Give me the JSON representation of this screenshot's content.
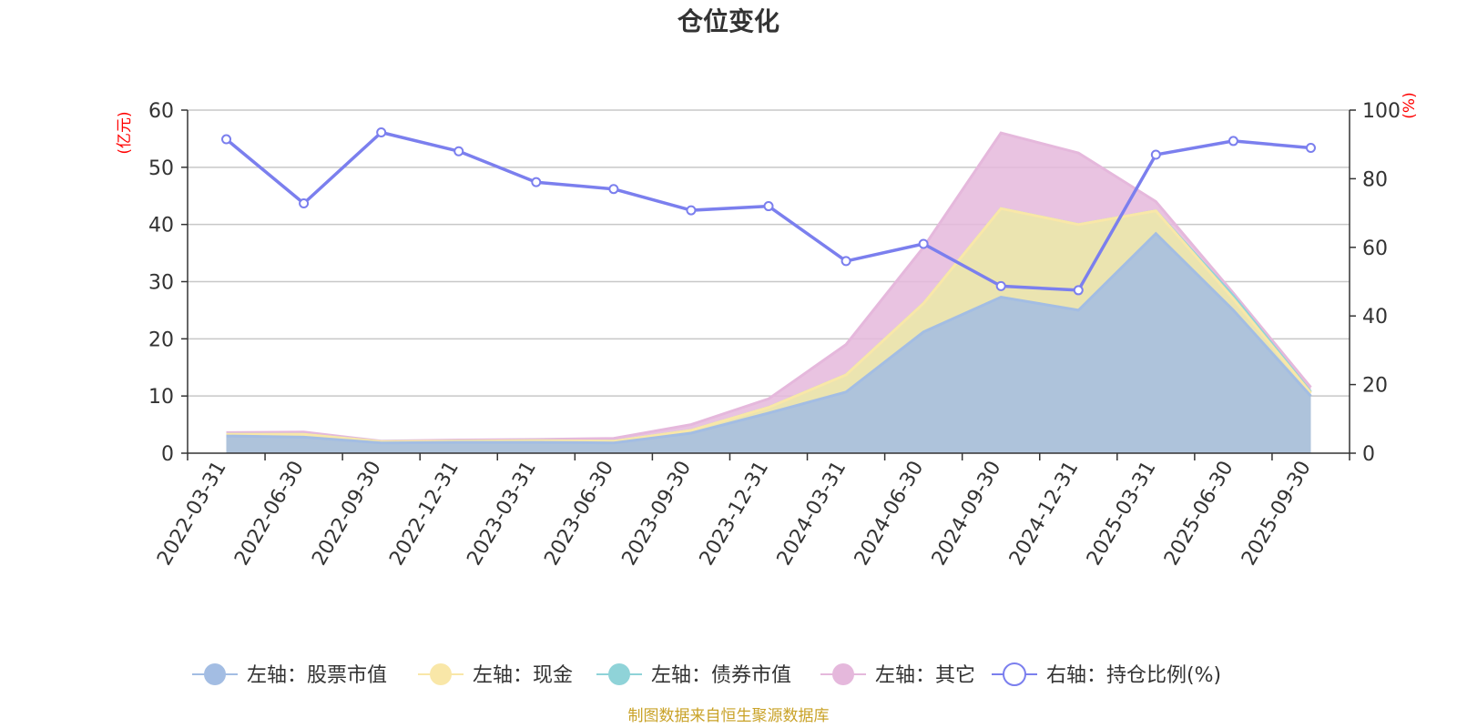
{
  "chart_data": {
    "type": "area",
    "title": "仓位变化",
    "ylabel_left": "(亿元)",
    "ylabel_right": "(%)",
    "ylim_left": [
      0,
      60
    ],
    "yticks_left": [
      "0",
      "10",
      "20",
      "30",
      "40",
      "50",
      "60"
    ],
    "ylim_right": [
      0,
      100
    ],
    "yticks_right": [
      "0",
      "20",
      "40",
      "60",
      "80",
      "100"
    ],
    "grid": true,
    "legend_position": "bottom",
    "categories": [
      "2022-03-31",
      "2022-06-30",
      "2022-09-30",
      "2022-12-31",
      "2023-03-31",
      "2023-06-30",
      "2023-09-30",
      "2023-12-31",
      "2024-03-31",
      "2024-06-30",
      "2024-09-30",
      "2024-12-31",
      "2025-03-31",
      "2025-06-30",
      "2025-09-30"
    ],
    "series": [
      {
        "name": "左轴：股票市值",
        "axis": "left",
        "stack": "pos",
        "color": "#a3bde3",
        "values": [
          3.0,
          2.8,
          1.8,
          1.9,
          1.9,
          1.8,
          3.5,
          7.0,
          10.7,
          21.2,
          27.3,
          25.0,
          38.4,
          25.0,
          10.0
        ]
      },
      {
        "name": "左轴：现金",
        "axis": "left",
        "stack": "pos",
        "color": "#f9e7a8",
        "values": [
          0.3,
          0.5,
          0.2,
          0.2,
          0.3,
          0.3,
          0.5,
          1.0,
          3.0,
          5.0,
          15.5,
          15.0,
          4.0,
          2.0,
          0.5
        ]
      },
      {
        "name": "左轴：债券市值",
        "axis": "left",
        "stack": "pos",
        "color": "#8fd3d8",
        "values": [
          0,
          0,
          0,
          0,
          0,
          0,
          0,
          0,
          0,
          0,
          0,
          0,
          0,
          0.5,
          0.2
        ]
      },
      {
        "name": "左轴：其它",
        "axis": "left",
        "stack": "pos",
        "color": "#e5b8dc",
        "values": [
          0.3,
          0.4,
          0.1,
          0.2,
          0.2,
          0.5,
          1.0,
          1.5,
          5.3,
          9.8,
          13.2,
          12.5,
          1.6,
          0.5,
          0.8
        ]
      },
      {
        "name": "右轴：持仓比例(%)",
        "axis": "right",
        "color": "#7b7fee",
        "values": [
          91.5,
          72.8,
          93.5,
          88.0,
          79.0,
          77.0,
          70.8,
          72.0,
          56.0,
          61.0,
          48.7,
          47.5,
          87.0,
          91.0,
          89.0
        ]
      }
    ],
    "source_note": "制图数据来自恒生聚源数据库"
  }
}
